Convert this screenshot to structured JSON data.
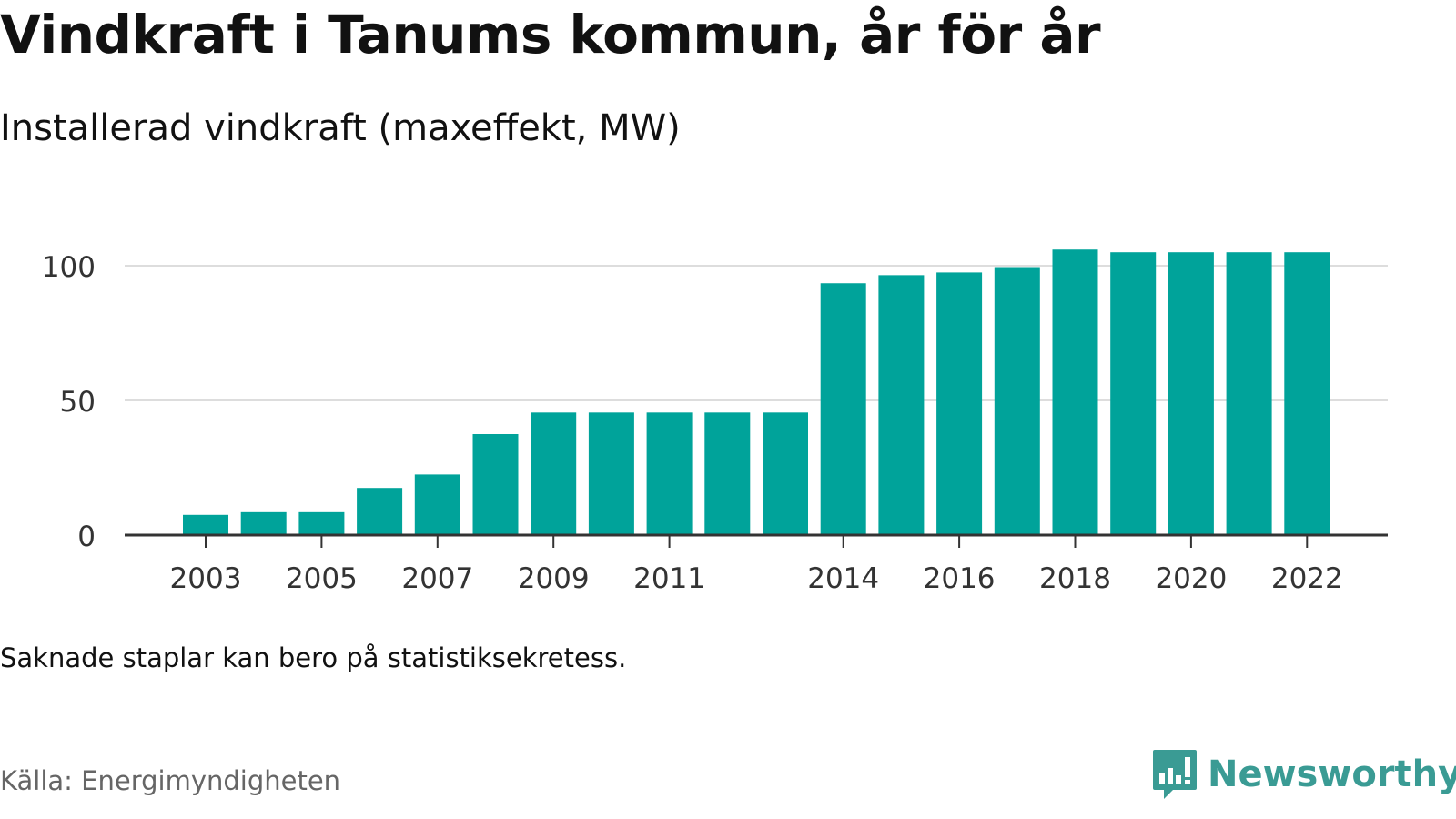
{
  "header": {
    "title": "Vindkraft i Tanums kommun, år för år",
    "subtitle": "Installerad vindkraft (maxeffekt, MW)"
  },
  "footer": {
    "note": "Saknade staplar kan bero på statistiksekretess.",
    "source": "Källa: Energimyndigheten",
    "logo": "Newsworthy"
  },
  "colors": {
    "bar": "#00a39a",
    "grid": "#dddddd",
    "axis": "#333333",
    "logo": "#3a9b94"
  },
  "icons": {
    "logo": "newsworthy-logo-icon"
  },
  "chart_data": {
    "type": "bar",
    "title": "Vindkraft i Tanums kommun, år för år",
    "subtitle": "Installerad vindkraft (maxeffekt, MW)",
    "xlabel": "",
    "ylabel": "",
    "categories": [
      "2003",
      "2004",
      "2005",
      "2006",
      "2007",
      "2008",
      "2009",
      "2010",
      "2011",
      "2012",
      "2013",
      "2014",
      "2015",
      "2016",
      "2017",
      "2018",
      "2019",
      "2020",
      "2021",
      "2022"
    ],
    "values": [
      7.5,
      8.5,
      8.5,
      17.5,
      22.5,
      37.5,
      45.5,
      45.5,
      45.5,
      45.5,
      45.5,
      93.5,
      96.5,
      97.5,
      99.5,
      106,
      105,
      105,
      105,
      105
    ],
    "x_tick_labels": [
      "2003",
      "2005",
      "2007",
      "2009",
      "2011",
      "2014",
      "2016",
      "2018",
      "2020",
      "2022"
    ],
    "y_ticks": [
      0,
      50,
      100
    ],
    "ylim": [
      0,
      110
    ],
    "grid": true,
    "legend": "none"
  }
}
